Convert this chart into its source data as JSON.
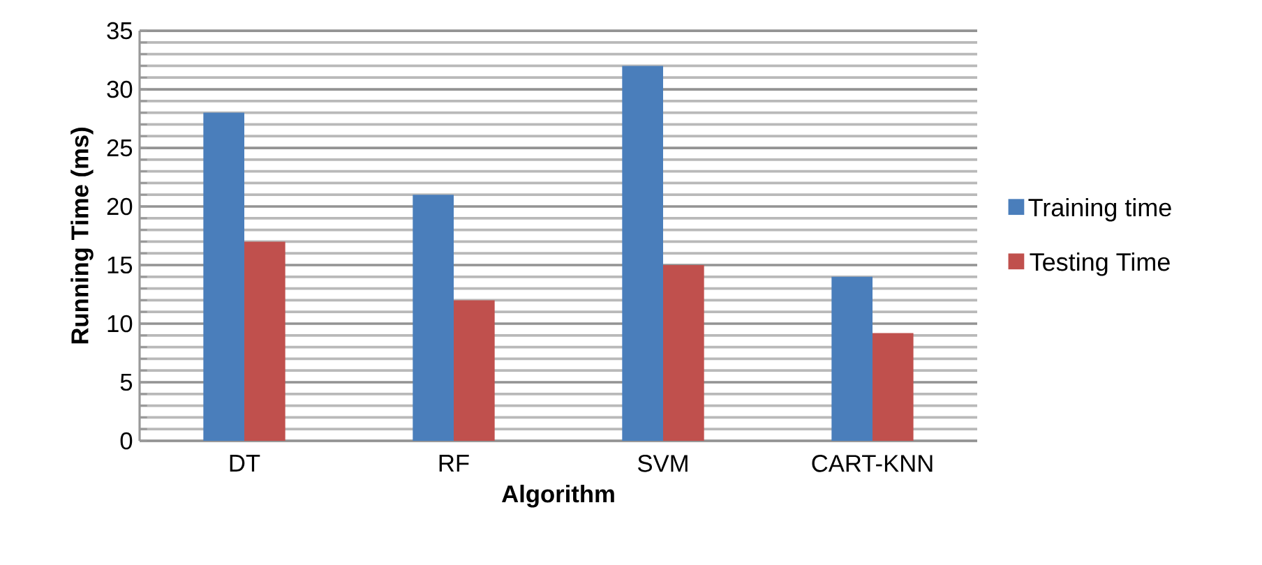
{
  "chart_data": {
    "type": "bar",
    "xlabel": "Algorithm",
    "ylabel": "Running Time (ms)",
    "categories": [
      "DT",
      "RF",
      "SVM",
      "CART-KNN"
    ],
    "series": [
      {
        "name": "Training time",
        "color": "#4a7ebb",
        "values": [
          28,
          21,
          32,
          14
        ]
      },
      {
        "name": "Testing Time",
        "color": "#c0504d",
        "values": [
          17,
          12,
          15,
          9.2
        ]
      }
    ],
    "ylim": [
      0,
      35
    ],
    "yticks": [
      0,
      {
        "value": 1,
        "label": null
      },
      {
        "value": 2,
        "label": null
      },
      {
        "value": 3,
        "label": null
      },
      {
        "value": 4,
        "label": null
      },
      5,
      {
        "value": 6,
        "label": null
      },
      {
        "value": 7,
        "label": null
      },
      {
        "value": 8,
        "label": null
      },
      {
        "value": 9,
        "label": null
      },
      10,
      {
        "value": 11,
        "label": null
      },
      {
        "value": 12,
        "label": null
      },
      {
        "value": 13,
        "label": null
      },
      {
        "value": 14,
        "label": null
      },
      15,
      {
        "value": 16,
        "label": null
      },
      {
        "value": 17,
        "label": null
      },
      {
        "value": 18,
        "label": null
      },
      {
        "value": 19,
        "label": null
      },
      20,
      {
        "value": 21,
        "label": null
      },
      {
        "value": 22,
        "label": null
      },
      {
        "value": 23,
        "label": null
      },
      {
        "value": 24,
        "label": null
      },
      25,
      {
        "value": 26,
        "label": null
      },
      {
        "value": 27,
        "label": null
      },
      {
        "value": 28,
        "label": null
      },
      {
        "value": 29,
        "label": null
      },
      30,
      {
        "value": 31,
        "label": null
      },
      {
        "value": 32,
        "label": null
      },
      {
        "value": 33,
        "label": null
      },
      {
        "value": 34,
        "label": null
      },
      35
    ],
    "grid": true,
    "legend": "right"
  }
}
